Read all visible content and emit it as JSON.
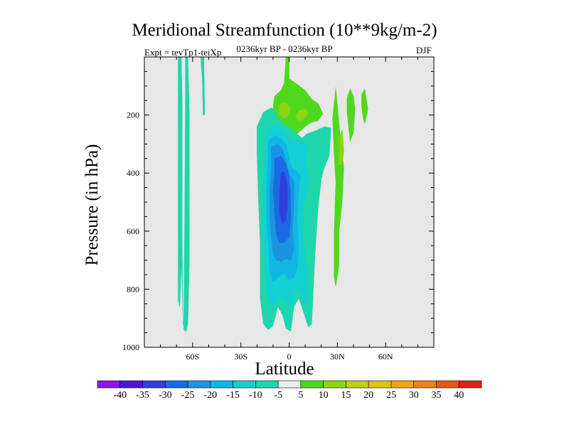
{
  "chart_data": {
    "type": "heatmap",
    "title": "Meridional Streamfunction (10**9kg/m-2)",
    "subtitle": "0236kyr BP - 0236kyr BP",
    "experiment": "Expt = tevTp1-teiXp",
    "season": "DJF",
    "xlabel": "Latitude",
    "ylabel": "Pressure (in hPa)",
    "xlim": [
      -90,
      90
    ],
    "ylim": [
      1000,
      0
    ],
    "x_ticks": [
      {
        "value": -60,
        "label": "60S"
      },
      {
        "value": -30,
        "label": "30S"
      },
      {
        "value": 0,
        "label": "0"
      },
      {
        "value": 30,
        "label": "30N"
      },
      {
        "value": 60,
        "label": "60N"
      }
    ],
    "y_ticks": [
      {
        "value": 200,
        "label": "200"
      },
      {
        "value": 400,
        "label": "400"
      },
      {
        "value": 600,
        "label": "600"
      },
      {
        "value": 800,
        "label": "800"
      },
      {
        "value": 1000,
        "label": "1000"
      }
    ],
    "colorbar": {
      "levels": [
        "-40",
        "-35",
        "-30",
        "-25",
        "-20",
        "-15",
        "-10",
        "-5",
        "5",
        "10",
        "15",
        "20",
        "25",
        "30",
        "35",
        "40"
      ],
      "colors": [
        "#8c17e6",
        "#4f13d8",
        "#2f3fd9",
        "#1a6be3",
        "#1a94e0",
        "#10b7e4",
        "#13d0d2",
        "#1fd5ac",
        "#ececec",
        "#4ed91e",
        "#8dd317",
        "#bcd014",
        "#e3c409",
        "#eca612",
        "#e9841a",
        "#e55a1c",
        "#dc2415"
      ]
    },
    "contours": [
      {
        "name": "negative -5 tongue 65S",
        "value": -7,
        "color": "#1fd5ac",
        "points": [
          [
            -69,
            0
          ],
          [
            -67,
            0
          ],
          [
            -66.5,
            150
          ],
          [
            -66.5,
            600
          ],
          [
            -66,
            920
          ],
          [
            -65.5,
            920
          ],
          [
            -65,
            600
          ],
          [
            -64.5,
            150
          ],
          [
            -64.5,
            0
          ],
          [
            -63,
            0
          ],
          [
            -62,
            200
          ],
          [
            -62,
            700
          ],
          [
            -63,
            920
          ],
          [
            -64,
            945
          ],
          [
            -65.5,
            940
          ],
          [
            -66,
            900
          ],
          [
            -67,
            700
          ],
          [
            -68,
            860
          ],
          [
            -69,
            840
          ],
          [
            -69,
            500
          ]
        ]
      },
      {
        "name": "negative -5 tongue 55S",
        "value": -7,
        "color": "#1fd5ac",
        "points": [
          [
            -55,
            0
          ],
          [
            -53,
            0
          ],
          [
            -52.5,
            200
          ],
          [
            -53.5,
            200
          ],
          [
            -54,
            80
          ]
        ]
      },
      {
        "name": "tropical -5",
        "value": -7,
        "color": "#1fd5ac",
        "points": [
          [
            -20,
            240
          ],
          [
            -16,
            190
          ],
          [
            -11,
            175
          ],
          [
            -6,
            195
          ],
          [
            -3,
            220
          ],
          [
            1,
            235
          ],
          [
            5,
            265
          ],
          [
            8,
            280
          ],
          [
            11,
            265
          ],
          [
            16,
            255
          ],
          [
            22,
            240
          ],
          [
            26,
            245
          ],
          [
            25,
            340
          ],
          [
            22,
            380
          ],
          [
            20,
            420
          ],
          [
            18,
            520
          ],
          [
            16,
            690
          ],
          [
            14,
            920
          ],
          [
            12,
            930
          ],
          [
            9,
            880
          ],
          [
            6,
            830
          ],
          [
            3,
            860
          ],
          [
            1,
            945
          ],
          [
            -2,
            935
          ],
          [
            -4,
            890
          ],
          [
            -7,
            860
          ],
          [
            -10,
            925
          ],
          [
            -13,
            940
          ],
          [
            -16,
            920
          ],
          [
            -18,
            830
          ],
          [
            -18,
            640
          ],
          [
            -19,
            500
          ],
          [
            -20,
            330
          ]
        ]
      },
      {
        "name": "-10",
        "value": -12,
        "color": "#13d0d2",
        "points": [
          [
            -14,
            265
          ],
          [
            -10,
            235
          ],
          [
            -6,
            240
          ],
          [
            -3,
            255
          ],
          [
            0,
            278
          ],
          [
            3,
            290
          ],
          [
            8,
            295
          ],
          [
            11,
            300
          ],
          [
            10,
            360
          ],
          [
            12,
            420
          ],
          [
            10,
            480
          ],
          [
            8,
            560
          ],
          [
            9,
            640
          ],
          [
            11,
            740
          ],
          [
            12,
            845
          ],
          [
            9,
            840
          ],
          [
            6,
            800
          ],
          [
            3,
            805
          ],
          [
            1,
            860
          ],
          [
            -2,
            850
          ],
          [
            -5,
            825
          ],
          [
            -9,
            855
          ],
          [
            -12,
            860
          ],
          [
            -14,
            800
          ],
          [
            -15,
            700
          ],
          [
            -16,
            600
          ],
          [
            -16,
            450
          ],
          [
            -15,
            350
          ]
        ]
      },
      {
        "name": "-15",
        "value": -17,
        "color": "#10b7e4",
        "points": [
          [
            -13,
            290
          ],
          [
            -9,
            270
          ],
          [
            -5,
            280
          ],
          [
            -2,
            300
          ],
          [
            0,
            350
          ],
          [
            2,
            385
          ],
          [
            5,
            395
          ],
          [
            7,
            410
          ],
          [
            6,
            470
          ],
          [
            5,
            560
          ],
          [
            6,
            650
          ],
          [
            5,
            730
          ],
          [
            3,
            760
          ],
          [
            0,
            770
          ],
          [
            -3,
            745
          ],
          [
            -7,
            760
          ],
          [
            -10,
            775
          ],
          [
            -12,
            740
          ],
          [
            -13,
            650
          ],
          [
            -14,
            550
          ],
          [
            -14,
            450
          ],
          [
            -13,
            350
          ]
        ]
      },
      {
        "name": "-20",
        "value": -22,
        "color": "#1a94e0",
        "points": [
          [
            -11,
            310
          ],
          [
            -7,
            300
          ],
          [
            -4,
            320
          ],
          [
            -2,
            355
          ],
          [
            0,
            400
          ],
          [
            3,
            430
          ],
          [
            3,
            520
          ],
          [
            2,
            600
          ],
          [
            3,
            660
          ],
          [
            1,
            700
          ],
          [
            -2,
            695
          ],
          [
            -5,
            705
          ],
          [
            -8,
            700
          ],
          [
            -10,
            680
          ],
          [
            -11,
            620
          ],
          [
            -12,
            550
          ],
          [
            -12,
            460
          ],
          [
            -11,
            380
          ]
        ]
      },
      {
        "name": "-25",
        "value": -27,
        "color": "#1a6be3",
        "points": [
          [
            -9,
            350
          ],
          [
            -5,
            340
          ],
          [
            -2,
            370
          ],
          [
            0,
            410
          ],
          [
            1,
            480
          ],
          [
            1,
            560
          ],
          [
            0,
            620
          ],
          [
            -3,
            640
          ],
          [
            -6,
            640
          ],
          [
            -8,
            610
          ],
          [
            -9,
            540
          ],
          [
            -10,
            460
          ],
          [
            -9,
            400
          ]
        ]
      },
      {
        "name": "-30",
        "value": -32,
        "color": "#2f3fd9",
        "points": [
          [
            -5,
            400
          ],
          [
            -3,
            395
          ],
          [
            -1,
            440
          ],
          [
            -1,
            510
          ],
          [
            -2,
            560
          ],
          [
            -4,
            575
          ],
          [
            -6,
            540
          ],
          [
            -6,
            470
          ]
        ]
      },
      {
        "name": "positive 5 upper",
        "value": 7,
        "color": "#4ed91e",
        "points": [
          [
            -2,
            0
          ],
          [
            0,
            0
          ],
          [
            0,
            75
          ],
          [
            4,
            90
          ],
          [
            10,
            115
          ],
          [
            14,
            145
          ],
          [
            18,
            160
          ],
          [
            21,
            195
          ],
          [
            18,
            220
          ],
          [
            14,
            225
          ],
          [
            10,
            240
          ],
          [
            5,
            265
          ],
          [
            1,
            245
          ],
          [
            -3,
            230
          ],
          [
            -7,
            210
          ],
          [
            -10,
            175
          ],
          [
            -9,
            135
          ],
          [
            -5,
            115
          ],
          [
            -3,
            90
          ]
        ]
      },
      {
        "name": "positive 10 upper left",
        "value": 12,
        "color": "#8dd317",
        "points": [
          [
            -6,
            170
          ],
          [
            -4,
            155
          ],
          [
            -1,
            160
          ],
          [
            1,
            180
          ],
          [
            -1,
            205
          ],
          [
            -4,
            210
          ],
          [
            -6,
            195
          ]
        ]
      },
      {
        "name": "positive 10 upper right",
        "value": 12,
        "color": "#8dd317",
        "points": [
          [
            6,
            185
          ],
          [
            10,
            178
          ],
          [
            12,
            195
          ],
          [
            9,
            215
          ],
          [
            6,
            220
          ],
          [
            4,
            205
          ]
        ]
      },
      {
        "name": "positive 5 ridge 27N",
        "value": 7,
        "color": "#4ed91e",
        "points": [
          [
            27,
            210
          ],
          [
            29,
            105
          ],
          [
            31,
            225
          ],
          [
            32,
            290
          ],
          [
            34,
            380
          ],
          [
            33,
            500
          ],
          [
            31,
            600
          ],
          [
            31,
            720
          ],
          [
            29,
            790
          ],
          [
            28,
            760
          ],
          [
            28,
            600
          ],
          [
            29,
            430
          ],
          [
            28,
            340
          ]
        ]
      },
      {
        "name": "positive 10 ridge 30N",
        "value": 12,
        "color": "#8dd317",
        "points": [
          [
            31,
            280
          ],
          [
            33,
            250
          ],
          [
            34,
            320
          ],
          [
            33,
            370
          ],
          [
            31,
            370
          ],
          [
            31,
            320
          ]
        ]
      },
      {
        "name": "positive 5 branch 39N",
        "value": 7,
        "color": "#4ed91e",
        "points": [
          [
            36,
            140
          ],
          [
            38,
            110
          ],
          [
            40,
            135
          ],
          [
            41,
            180
          ],
          [
            40,
            260
          ],
          [
            38,
            290
          ],
          [
            37,
            245
          ],
          [
            36,
            190
          ]
        ]
      },
      {
        "name": "positive 5 branch 47N",
        "value": 7,
        "color": "#4ed91e",
        "points": [
          [
            45,
            130
          ],
          [
            47,
            110
          ],
          [
            49,
            180
          ],
          [
            47,
            230
          ],
          [
            46,
            210
          ],
          [
            45,
            170
          ]
        ]
      }
    ]
  }
}
